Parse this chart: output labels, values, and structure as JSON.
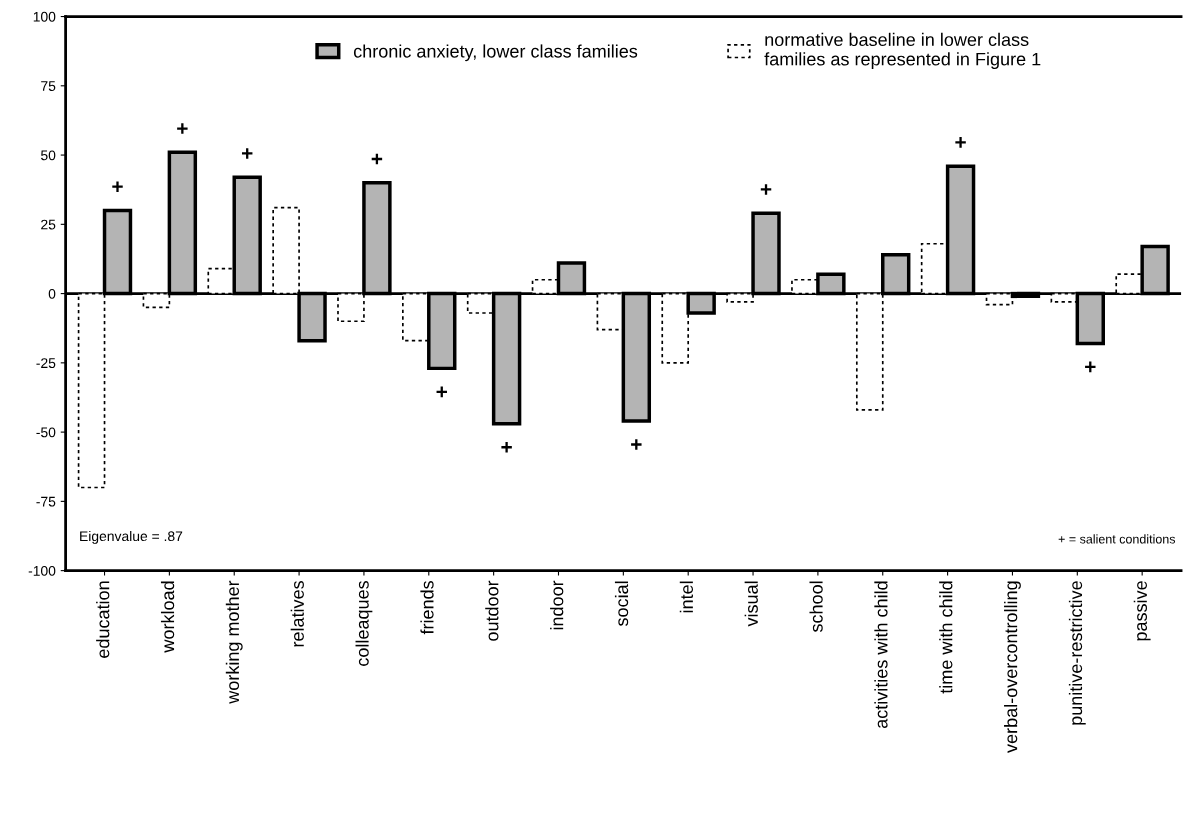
{
  "chart_data": {
    "type": "bar",
    "categories": [
      "education",
      "workload",
      "working mother",
      "relatives",
      "colleaques",
      "friends",
      "outdoor",
      "indoor",
      "social",
      "intel",
      "visual",
      "school",
      "activities with child",
      "time with child",
      "verbal-overcontrolling",
      "punitive-restrictive",
      "passive"
    ],
    "series": [
      {
        "name": "normative baseline in lower class families as represented in Figure 1",
        "color": "#ffffff",
        "line_style": "dashed",
        "values": [
          -70,
          -5,
          9,
          31,
          -10,
          -17,
          -7,
          5,
          -13,
          -25,
          -3,
          5,
          -42,
          18,
          -4,
          -3,
          7
        ]
      },
      {
        "name": "chronic anxiety, lower class families",
        "color": "#b4b4b4",
        "line_style": "solid",
        "values": [
          30,
          51,
          42,
          -17,
          40,
          -27,
          -47,
          11,
          -46,
          -7,
          29,
          7,
          14,
          46,
          -1,
          -18,
          17
        ]
      }
    ],
    "ylim": [
      -100,
      100
    ],
    "yticks": [
      -100,
      -75,
      -50,
      -25,
      0,
      25,
      50,
      75,
      100
    ],
    "grid": false,
    "legend": "top",
    "ref_lines": [
      {
        "axis": "y",
        "value": 0,
        "color": "#000000",
        "line_style": "solid"
      }
    ],
    "annotations": [
      {
        "text": "+",
        "x": "education",
        "y": 30
      },
      {
        "text": "+",
        "x": "workload",
        "y": 51
      },
      {
        "text": "+",
        "x": "working mother",
        "y": 42
      },
      {
        "text": "+",
        "x": "colleaques",
        "y": 40
      },
      {
        "text": "+",
        "x": "friends",
        "y": -27
      },
      {
        "text": "+",
        "x": "outdoor",
        "y": -47
      },
      {
        "text": "+",
        "x": "social",
        "y": -46
      },
      {
        "text": "+",
        "x": "visual",
        "y": 29
      },
      {
        "text": "+",
        "x": "time with child",
        "y": 46
      },
      {
        "text": "+",
        "x": "punitive-restrictive",
        "y": -18
      },
      "Eigenvalue = .87",
      "+ = salient conditions"
    ]
  }
}
